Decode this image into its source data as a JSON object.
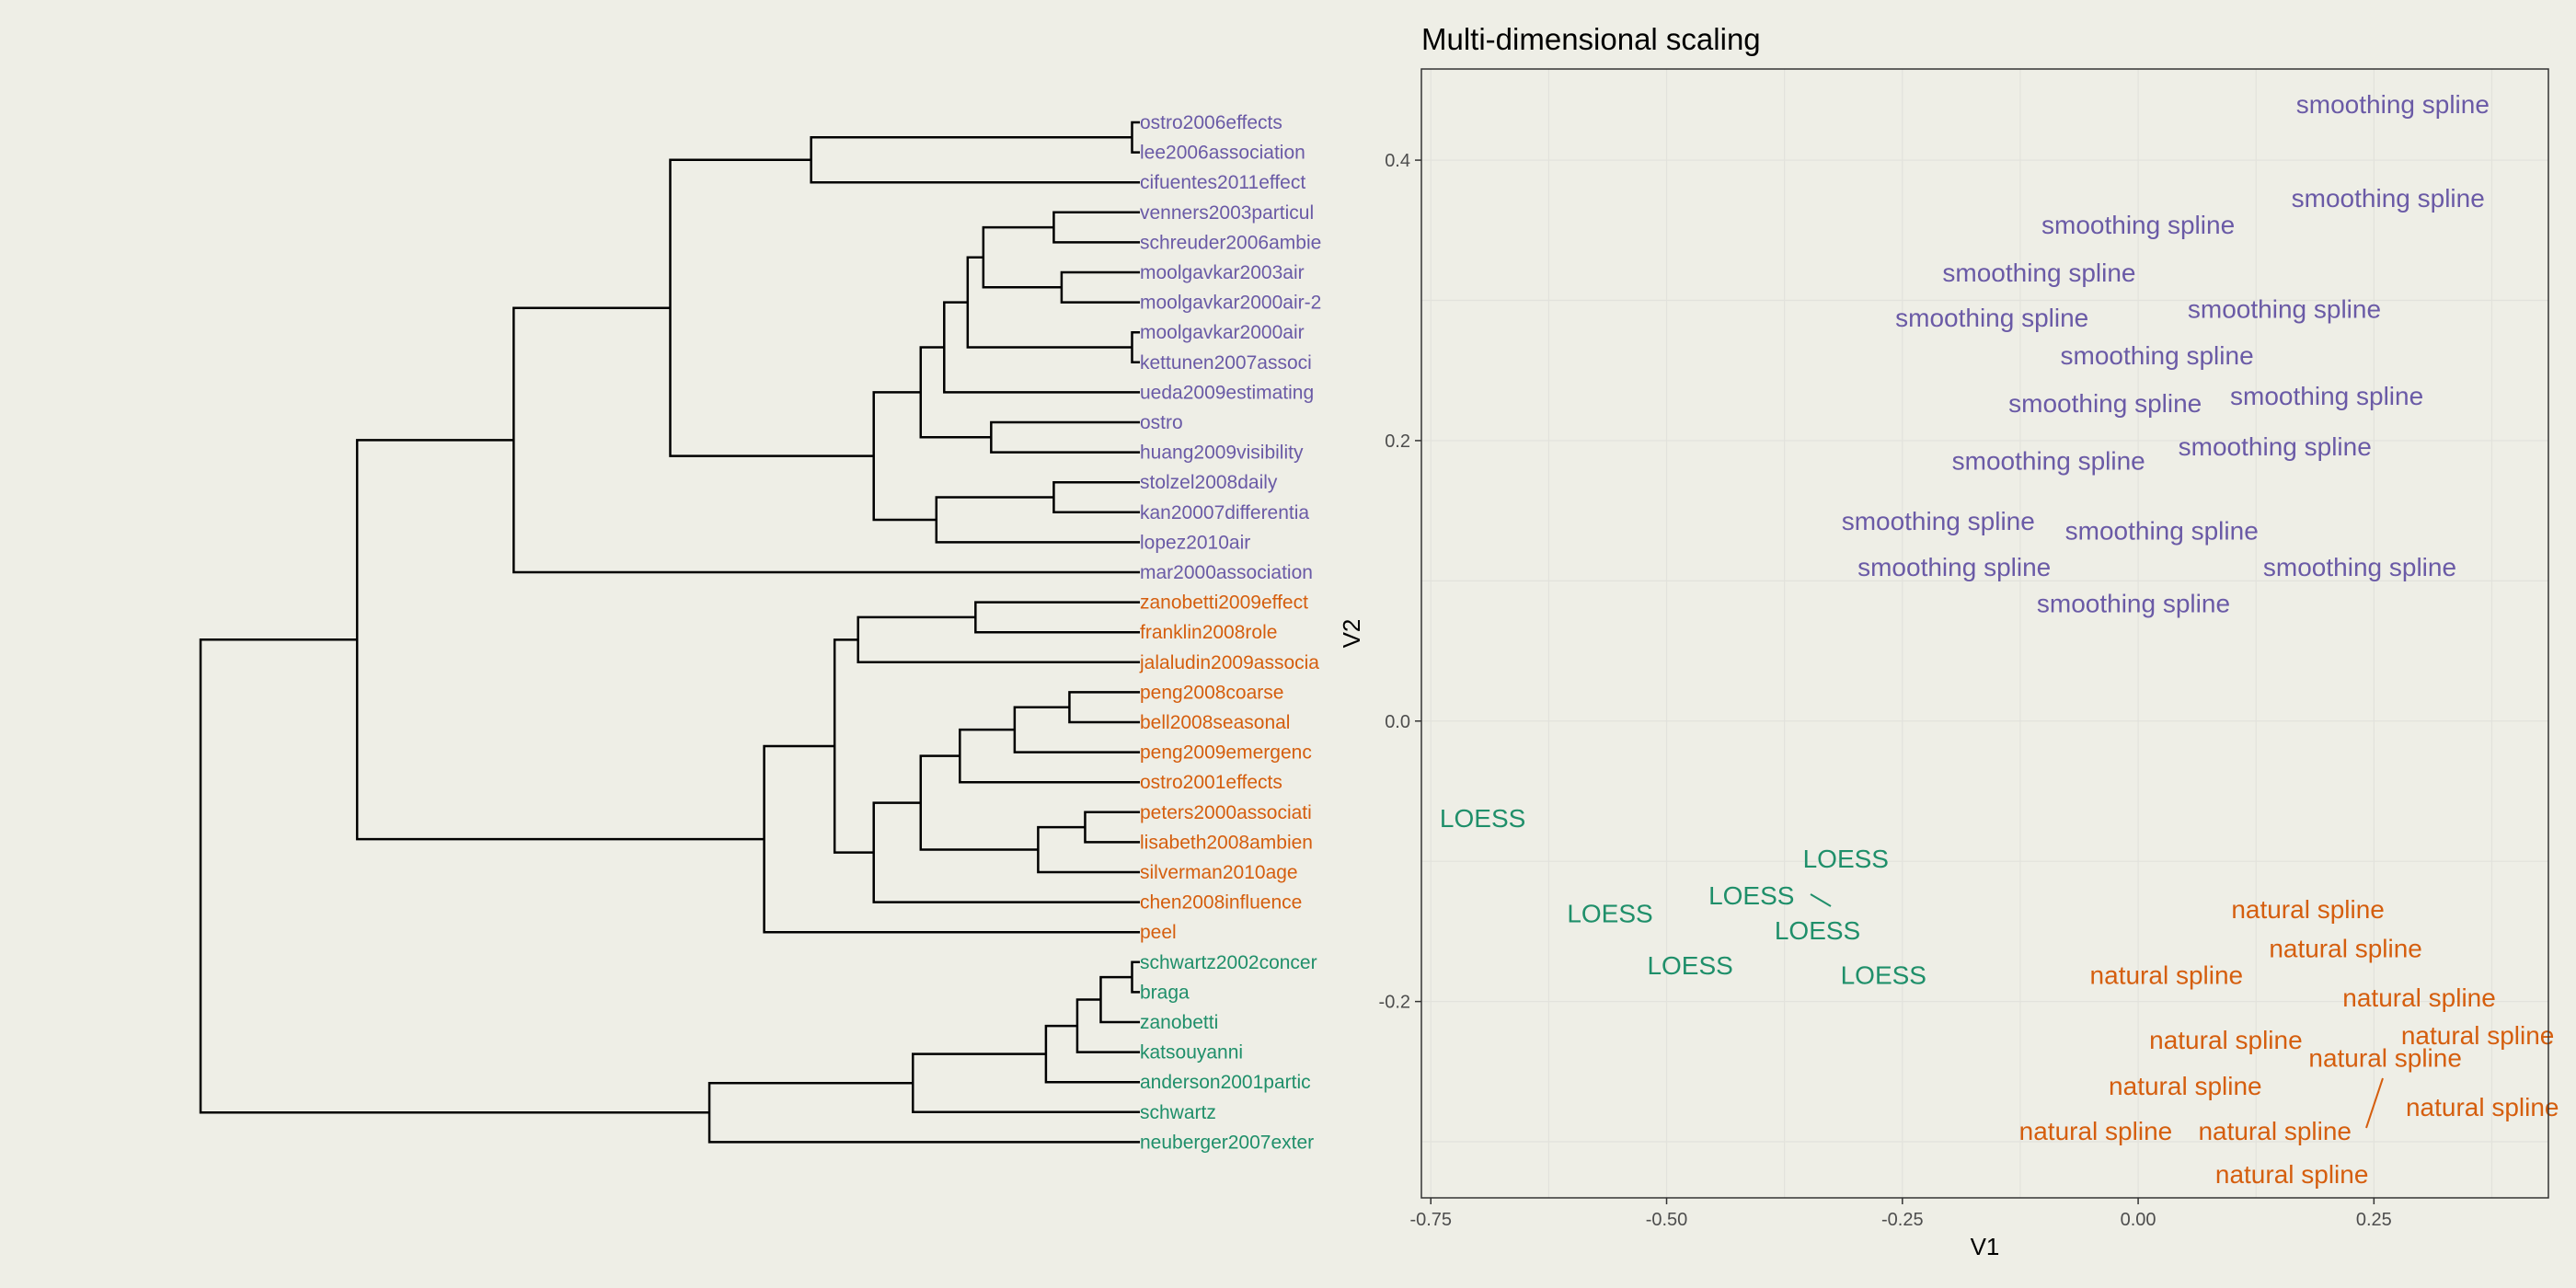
{
  "colors": {
    "smoothing_spline": "#6a5aa6",
    "loess": "#1f8f6a",
    "natural_spline": "#d55e0e",
    "branch": "#000000",
    "panel_background": "#eeeee6",
    "grid": "#e2e2dc",
    "panel_border": "#333333"
  },
  "chart_data": [
    {
      "type": "dendrogram",
      "leaves": [
        {
          "label": "ostro2006effects",
          "group": "smoothing_spline"
        },
        {
          "label": "lee2006association",
          "group": "smoothing_spline"
        },
        {
          "label": "cifuentes2011effect",
          "group": "smoothing_spline"
        },
        {
          "label": "venners2003particul",
          "group": "smoothing_spline"
        },
        {
          "label": "schreuder2006ambie",
          "group": "smoothing_spline"
        },
        {
          "label": "moolgavkar2003air",
          "group": "smoothing_spline"
        },
        {
          "label": "moolgavkar2000air-2",
          "group": "smoothing_spline"
        },
        {
          "label": "moolgavkar2000air",
          "group": "smoothing_spline"
        },
        {
          "label": "kettunen2007associ",
          "group": "smoothing_spline"
        },
        {
          "label": "ueda2009estimating",
          "group": "smoothing_spline"
        },
        {
          "label": "ostro",
          "group": "smoothing_spline"
        },
        {
          "label": "huang2009visibility",
          "group": "smoothing_spline"
        },
        {
          "label": "stolzel2008daily",
          "group": "smoothing_spline"
        },
        {
          "label": "kan20007differentia",
          "group": "smoothing_spline"
        },
        {
          "label": "lopez2010air",
          "group": "smoothing_spline"
        },
        {
          "label": "mar2000association",
          "group": "smoothing_spline"
        },
        {
          "label": "zanobetti2009effect",
          "group": "natural_spline"
        },
        {
          "label": "franklin2008role",
          "group": "natural_spline"
        },
        {
          "label": "jalaludin2009associa",
          "group": "natural_spline"
        },
        {
          "label": "peng2008coarse",
          "group": "natural_spline"
        },
        {
          "label": "bell2008seasonal",
          "group": "natural_spline"
        },
        {
          "label": "peng2009emergenc",
          "group": "natural_spline"
        },
        {
          "label": "ostro2001effects",
          "group": "natural_spline"
        },
        {
          "label": "peters2000associati",
          "group": "natural_spline"
        },
        {
          "label": "lisabeth2008ambien",
          "group": "natural_spline"
        },
        {
          "label": "silverman2010age",
          "group": "natural_spline"
        },
        {
          "label": "chen2008influence",
          "group": "natural_spline"
        },
        {
          "label": "peel",
          "group": "natural_spline"
        },
        {
          "label": "schwartz2002concer",
          "group": "loess"
        },
        {
          "label": "braga",
          "group": "loess"
        },
        {
          "label": "zanobetti",
          "group": "loess"
        },
        {
          "label": "katsouyanni",
          "group": "loess"
        },
        {
          "label": "anderson2001partic",
          "group": "loess"
        },
        {
          "label": "schwartz",
          "group": "loess"
        },
        {
          "label": "neuberger2007exter",
          "group": "loess"
        }
      ],
      "merges": [
        {
          "a": 0,
          "b": 1,
          "height": 0.01
        },
        {
          "a": "m0",
          "b": 2,
          "height": 0.42
        },
        {
          "a": 3,
          "b": 4,
          "height": 0.11
        },
        {
          "a": 5,
          "b": 6,
          "height": 0.1
        },
        {
          "a": "m2",
          "b": "m3",
          "height": 0.2
        },
        {
          "a": 7,
          "b": 8,
          "height": 0.01
        },
        {
          "a": "m4",
          "b": "m5",
          "height": 0.22
        },
        {
          "a": "m6",
          "b": 9,
          "height": 0.25
        },
        {
          "a": 10,
          "b": 11,
          "height": 0.19
        },
        {
          "a": "m7",
          "b": "m8",
          "height": 0.28
        },
        {
          "a": 12,
          "b": 13,
          "height": 0.11
        },
        {
          "a": "m10",
          "b": 14,
          "height": 0.26
        },
        {
          "a": "m9",
          "b": "m11",
          "height": 0.34
        },
        {
          "a": "m1",
          "b": "m12",
          "height": 0.6
        },
        {
          "a": "m13",
          "b": 15,
          "height": 0.8
        },
        {
          "a": 16,
          "b": 17,
          "height": 0.21
        },
        {
          "a": "m15",
          "b": 18,
          "height": 0.36
        },
        {
          "a": 19,
          "b": 20,
          "height": 0.09
        },
        {
          "a": "m17",
          "b": 21,
          "height": 0.16
        },
        {
          "a": "m18",
          "b": 22,
          "height": 0.23
        },
        {
          "a": 23,
          "b": 24,
          "height": 0.07
        },
        {
          "a": "m20",
          "b": 25,
          "height": 0.13
        },
        {
          "a": "m19",
          "b": "m21",
          "height": 0.28
        },
        {
          "a": "m22",
          "b": 26,
          "height": 0.34
        },
        {
          "a": "m16",
          "b": "m23",
          "height": 0.39
        },
        {
          "a": "m24",
          "b": 27,
          "height": 0.48
        },
        {
          "a": 28,
          "b": 29,
          "height": 0.01
        },
        {
          "a": "m26",
          "b": 30,
          "height": 0.05
        },
        {
          "a": "m27",
          "b": 31,
          "height": 0.08
        },
        {
          "a": "m28",
          "b": 32,
          "height": 0.12
        },
        {
          "a": "m29",
          "b": 33,
          "height": 0.29
        },
        {
          "a": "m30",
          "b": 34,
          "height": 0.55
        },
        {
          "a": "m14",
          "b": "m25",
          "height": 1.0
        },
        {
          "a": "m32",
          "b": "m31",
          "height": 1.2
        }
      ]
    },
    {
      "type": "scatter",
      "title": "Multi-dimensional scaling",
      "xlabel": "V1",
      "ylabel": "V2",
      "xlim": [
        -0.76,
        0.435
      ],
      "ylim": [
        -0.34,
        0.465
      ],
      "xticks": [
        -0.75,
        -0.5,
        -0.25,
        0,
        0.25
      ],
      "xtick_labels": [
        "-0.75",
        "-0.50",
        "-0.25",
        "0.00",
        "0.25"
      ],
      "yticks": [
        -0.2,
        0,
        0.2,
        0.4
      ],
      "ytick_labels": [
        "-0.2",
        "0.0",
        "0.2",
        "0.4"
      ],
      "grid": true,
      "points": [
        {
          "x": 0.27,
          "y": 0.44,
          "label": "smoothing spline",
          "group": "smoothing_spline"
        },
        {
          "x": 0.265,
          "y": 0.373,
          "label": "smoothing spline",
          "group": "smoothing_spline"
        },
        {
          "x": 0.0,
          "y": 0.354,
          "label": "smoothing spline",
          "group": "smoothing_spline"
        },
        {
          "x": -0.105,
          "y": 0.32,
          "label": "smoothing spline",
          "group": "smoothing_spline"
        },
        {
          "x": 0.155,
          "y": 0.294,
          "label": "smoothing spline",
          "group": "smoothing_spline"
        },
        {
          "x": -0.155,
          "y": 0.288,
          "label": "smoothing spline",
          "group": "smoothing_spline"
        },
        {
          "x": 0.02,
          "y": 0.261,
          "label": "smoothing spline",
          "group": "smoothing_spline"
        },
        {
          "x": -0.035,
          "y": 0.227,
          "label": "smoothing spline",
          "group": "smoothing_spline"
        },
        {
          "x": 0.2,
          "y": 0.232,
          "label": "smoothing spline",
          "group": "smoothing_spline"
        },
        {
          "x": 0.145,
          "y": 0.196,
          "label": "smoothing spline",
          "group": "smoothing_spline"
        },
        {
          "x": -0.095,
          "y": 0.186,
          "label": "smoothing spline",
          "group": "smoothing_spline"
        },
        {
          "x": -0.212,
          "y": 0.143,
          "label": "smoothing spline",
          "group": "smoothing_spline"
        },
        {
          "x": 0.025,
          "y": 0.136,
          "label": "smoothing spline",
          "group": "smoothing_spline"
        },
        {
          "x": -0.195,
          "y": 0.11,
          "label": "smoothing spline",
          "group": "smoothing_spline"
        },
        {
          "x": 0.235,
          "y": 0.11,
          "label": "smoothing spline",
          "group": "smoothing_spline"
        },
        {
          "x": -0.005,
          "y": 0.084,
          "label": "smoothing spline",
          "group": "smoothing_spline"
        },
        {
          "x": -0.695,
          "y": -0.069,
          "label": "LOESS",
          "group": "loess"
        },
        {
          "x": -0.31,
          "y": -0.098,
          "label": "LOESS",
          "group": "loess"
        },
        {
          "x": -0.41,
          "y": -0.124,
          "label": "LOESS",
          "group": "loess"
        },
        {
          "x": -0.34,
          "y": -0.149,
          "label": "LOESS",
          "group": "loess"
        },
        {
          "x": -0.56,
          "y": -0.137,
          "label": "LOESS",
          "group": "loess"
        },
        {
          "x": -0.475,
          "y": -0.174,
          "label": "LOESS",
          "group": "loess"
        },
        {
          "x": -0.27,
          "y": -0.181,
          "label": "LOESS",
          "group": "loess"
        },
        {
          "x": 0.18,
          "y": -0.134,
          "label": "natural spline",
          "group": "natural_spline"
        },
        {
          "x": 0.22,
          "y": -0.162,
          "label": "natural spline",
          "group": "natural_spline"
        },
        {
          "x": 0.03,
          "y": -0.181,
          "label": "natural spline",
          "group": "natural_spline"
        },
        {
          "x": 0.298,
          "y": -0.197,
          "label": "natural spline",
          "group": "natural_spline"
        },
        {
          "x": 0.093,
          "y": -0.227,
          "label": "natural spline",
          "group": "natural_spline"
        },
        {
          "x": 0.36,
          "y": -0.224,
          "label": "natural spline",
          "group": "natural_spline"
        },
        {
          "x": 0.262,
          "y": -0.24,
          "label": "natural spline",
          "group": "natural_spline"
        },
        {
          "x": 0.05,
          "y": -0.26,
          "label": "natural spline",
          "group": "natural_spline"
        },
        {
          "x": 0.365,
          "y": -0.275,
          "label": "natural spline",
          "group": "natural_spline"
        },
        {
          "x": -0.045,
          "y": -0.292,
          "label": "natural spline",
          "group": "natural_spline"
        },
        {
          "x": 0.145,
          "y": -0.292,
          "label": "natural spline",
          "group": "natural_spline"
        },
        {
          "x": 0.163,
          "y": -0.323,
          "label": "natural spline",
          "group": "natural_spline"
        }
      ]
    }
  ]
}
